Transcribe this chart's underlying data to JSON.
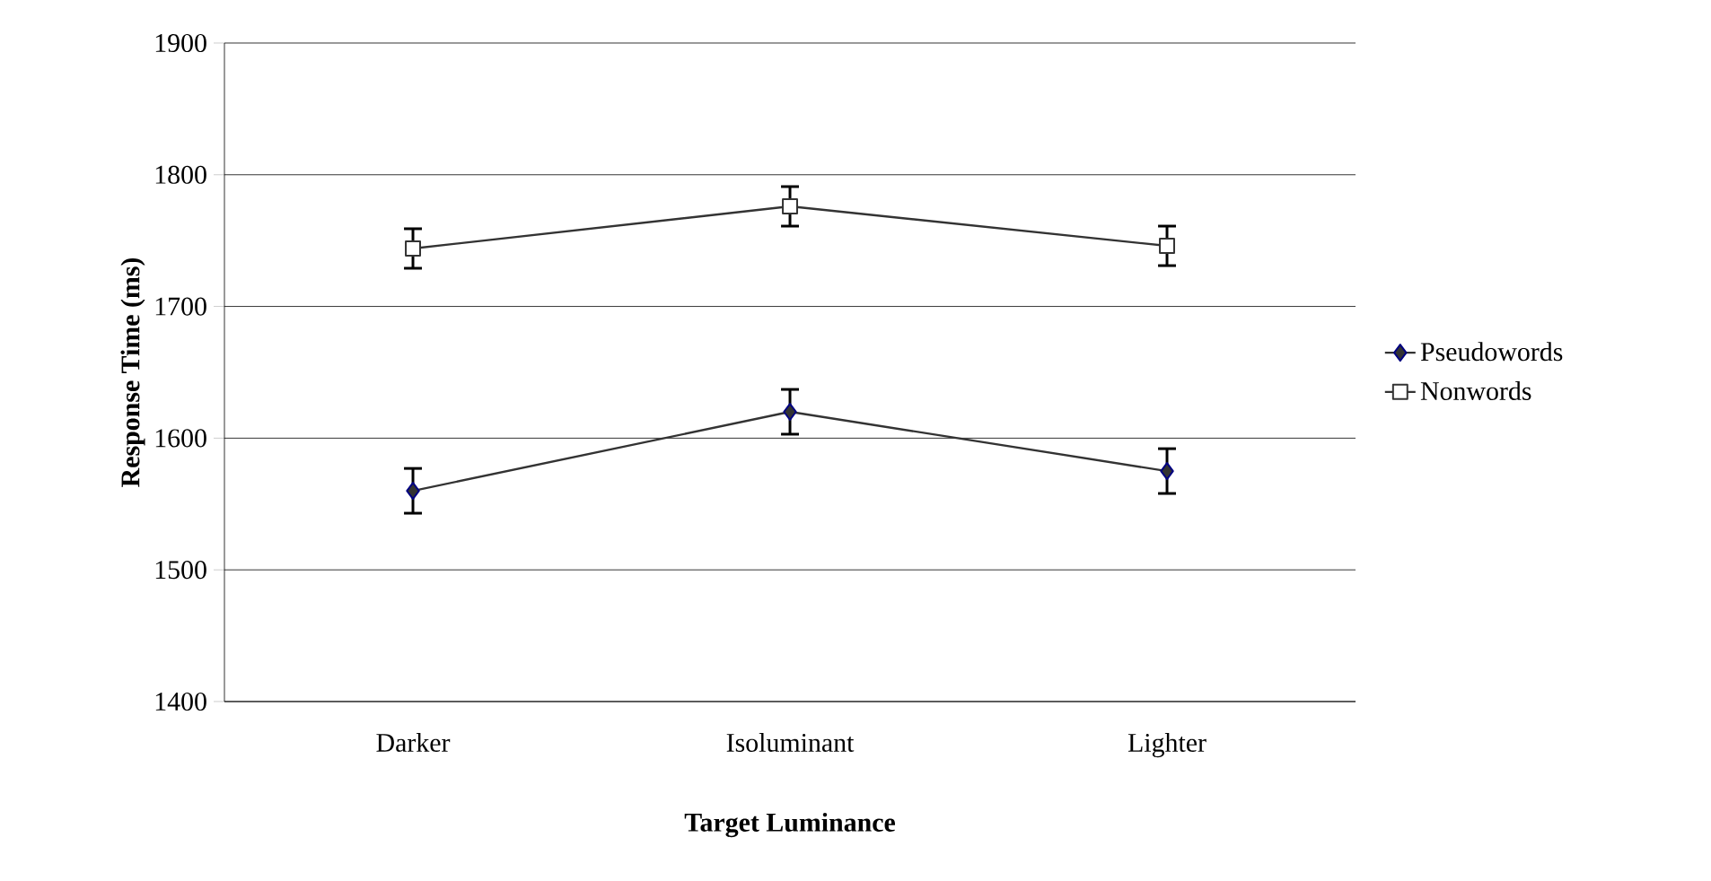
{
  "chart_data": {
    "type": "line",
    "xlabel": "Target Luminance",
    "ylabel": "Response Time (ms)",
    "categories": [
      "Darker",
      "Isoluminant",
      "Lighter"
    ],
    "series": [
      {
        "name": "Pseudowords",
        "color": "#333333",
        "marker": "diamond",
        "values": [
          1560,
          1620,
          1575
        ],
        "errors": [
          17,
          17,
          17
        ]
      },
      {
        "name": "Nonwords",
        "color": "#333333",
        "marker": "square",
        "values": [
          1744,
          1776,
          1746
        ],
        "errors": [
          15,
          15,
          15
        ]
      }
    ],
    "ylim": [
      1400,
      1900
    ],
    "yticks": [
      1400,
      1500,
      1600,
      1700,
      1800,
      1900
    ],
    "grid": "y",
    "legend": "right",
    "line_style": "solid"
  }
}
